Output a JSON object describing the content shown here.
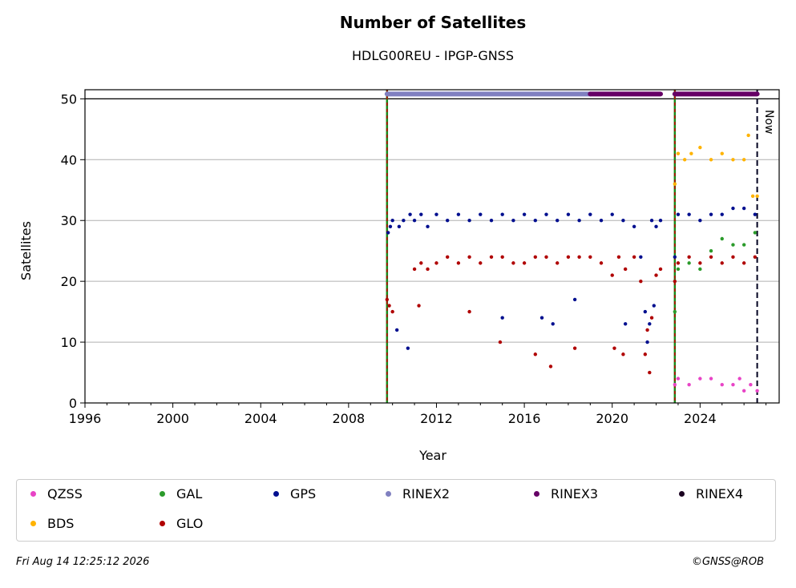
{
  "header": {
    "title": "Number of Satellites",
    "subtitle": "HDLG00REU - IPGP-GNSS"
  },
  "footer": {
    "timestamp": "Fri Aug 14 12:25:12 2026",
    "credit": "©GNSS@ROB"
  },
  "now_marker": {
    "label": "Now"
  },
  "legend": {
    "items": [
      {
        "label": "QZSS",
        "color": "#e844c6"
      },
      {
        "label": "GAL",
        "color": "#2b9b2b"
      },
      {
        "label": "GPS",
        "color": "#000f8f"
      },
      {
        "label": "RINEX2",
        "color": "#8080c0"
      },
      {
        "label": "RINEX3",
        "color": "#660066"
      },
      {
        "label": "RINEX4",
        "color": "#1a0020"
      },
      {
        "label": "BDS",
        "color": "#ffb300"
      },
      {
        "label": "GLO",
        "color": "#b00000"
      }
    ]
  },
  "chart_data": {
    "type": "scatter",
    "title": "Number of Satellites",
    "subtitle": "HDLG00REU - IPGP-GNSS",
    "xlabel": "Year",
    "ylabel": "Satellites",
    "xlim": [
      1996,
      2027.6
    ],
    "ylim": [
      0,
      51.5
    ],
    "x_ticks": [
      "1996",
      "2000",
      "2004",
      "2008",
      "2012",
      "2016",
      "2020",
      "2024"
    ],
    "y_ticks": [
      "0",
      "10",
      "20",
      "30",
      "40",
      "50"
    ],
    "grid": "horizontal",
    "legend_position": "bottom",
    "vertical_markers": [
      {
        "x": 2009.75,
        "style": "green-red dashed"
      },
      {
        "x": 2022.85,
        "style": "green-red dashed"
      },
      {
        "x": 2026.6,
        "style": "black dashed",
        "label": "Now"
      }
    ],
    "rinex_bars": [
      {
        "name": "RINEX2",
        "start": 2009.75,
        "end": 2019.0,
        "y": 50.8
      },
      {
        "name": "RINEX3",
        "start": 2019.0,
        "end": 2022.2,
        "y": 50.8
      },
      {
        "name": "RINEX3",
        "start": 2022.85,
        "end": 2026.6,
        "y": 50.8
      }
    ],
    "series": [
      {
        "name": "GPS",
        "points": [
          [
            2009.8,
            28
          ],
          [
            2009.9,
            29
          ],
          [
            2010.0,
            30
          ],
          [
            2010.3,
            29
          ],
          [
            2010.5,
            30
          ],
          [
            2010.8,
            31
          ],
          [
            2011.0,
            30
          ],
          [
            2011.3,
            31
          ],
          [
            2011.6,
            29
          ],
          [
            2012.0,
            31
          ],
          [
            2012.5,
            30
          ],
          [
            2013.0,
            31
          ],
          [
            2013.5,
            30
          ],
          [
            2014.0,
            31
          ],
          [
            2014.5,
            30
          ],
          [
            2015.0,
            31
          ],
          [
            2015.5,
            30
          ],
          [
            2016.0,
            31
          ],
          [
            2016.5,
            30
          ],
          [
            2017.0,
            31
          ],
          [
            2017.5,
            30
          ],
          [
            2018.0,
            31
          ],
          [
            2018.5,
            30
          ],
          [
            2019.0,
            31
          ],
          [
            2019.5,
            30
          ],
          [
            2020.0,
            31
          ],
          [
            2020.5,
            30
          ],
          [
            2021.0,
            29
          ],
          [
            2021.3,
            24
          ],
          [
            2021.5,
            15
          ],
          [
            2021.6,
            10
          ],
          [
            2021.7,
            13
          ],
          [
            2021.8,
            30
          ],
          [
            2022.0,
            29
          ],
          [
            2022.2,
            30
          ],
          [
            2010.2,
            12
          ],
          [
            2010.7,
            9
          ],
          [
            2015.0,
            14
          ],
          [
            2016.8,
            14
          ],
          [
            2017.3,
            13
          ],
          [
            2018.3,
            17
          ],
          [
            2020.6,
            13
          ],
          [
            2021.9,
            16
          ],
          [
            2022.85,
            24
          ],
          [
            2023.0,
            31
          ],
          [
            2023.5,
            31
          ],
          [
            2024.0,
            30
          ],
          [
            2024.5,
            31
          ],
          [
            2025.0,
            31
          ],
          [
            2025.5,
            32
          ],
          [
            2026.0,
            32
          ],
          [
            2026.5,
            31
          ]
        ]
      },
      {
        "name": "GLO",
        "points": [
          [
            2009.75,
            17
          ],
          [
            2009.85,
            16
          ],
          [
            2010.0,
            15
          ],
          [
            2011.0,
            22
          ],
          [
            2011.3,
            23
          ],
          [
            2011.6,
            22
          ],
          [
            2012.0,
            23
          ],
          [
            2012.5,
            24
          ],
          [
            2013.0,
            23
          ],
          [
            2013.5,
            24
          ],
          [
            2014.0,
            23
          ],
          [
            2014.5,
            24
          ],
          [
            2015.0,
            24
          ],
          [
            2015.5,
            23
          ],
          [
            2016.0,
            23
          ],
          [
            2016.5,
            24
          ],
          [
            2017.0,
            24
          ],
          [
            2017.5,
            23
          ],
          [
            2018.0,
            24
          ],
          [
            2018.5,
            24
          ],
          [
            2019.0,
            24
          ],
          [
            2019.5,
            23
          ],
          [
            2020.0,
            21
          ],
          [
            2020.3,
            24
          ],
          [
            2020.6,
            22
          ],
          [
            2021.0,
            24
          ],
          [
            2021.3,
            20
          ],
          [
            2021.5,
            8
          ],
          [
            2021.6,
            12
          ],
          [
            2021.7,
            5
          ],
          [
            2021.8,
            14
          ],
          [
            2022.0,
            21
          ],
          [
            2022.2,
            22
          ],
          [
            2011.2,
            16
          ],
          [
            2013.5,
            15
          ],
          [
            2014.9,
            10
          ],
          [
            2016.5,
            8
          ],
          [
            2017.2,
            6
          ],
          [
            2018.3,
            9
          ],
          [
            2020.1,
            9
          ],
          [
            2020.5,
            8
          ],
          [
            2022.85,
            20
          ],
          [
            2023.0,
            23
          ],
          [
            2023.5,
            24
          ],
          [
            2024.0,
            23
          ],
          [
            2024.5,
            24
          ],
          [
            2025.0,
            23
          ],
          [
            2025.5,
            24
          ],
          [
            2026.0,
            23
          ],
          [
            2026.5,
            24
          ]
        ]
      },
      {
        "name": "GAL",
        "points": [
          [
            2022.85,
            15
          ],
          [
            2023.0,
            22
          ],
          [
            2023.5,
            23
          ],
          [
            2024.0,
            22
          ],
          [
            2024.5,
            25
          ],
          [
            2025.0,
            27
          ],
          [
            2025.5,
            26
          ],
          [
            2026.0,
            26
          ],
          [
            2026.5,
            28
          ]
        ]
      },
      {
        "name": "BDS",
        "points": [
          [
            2022.85,
            36
          ],
          [
            2023.0,
            41
          ],
          [
            2023.3,
            40
          ],
          [
            2023.6,
            41
          ],
          [
            2024.0,
            42
          ],
          [
            2024.5,
            40
          ],
          [
            2025.0,
            41
          ],
          [
            2025.5,
            40
          ],
          [
            2026.0,
            40
          ],
          [
            2026.2,
            44
          ],
          [
            2026.4,
            34
          ],
          [
            2026.6,
            34
          ]
        ]
      },
      {
        "name": "QZSS",
        "points": [
          [
            2022.85,
            3
          ],
          [
            2023.0,
            4
          ],
          [
            2023.5,
            3
          ],
          [
            2024.0,
            4
          ],
          [
            2024.5,
            4
          ],
          [
            2025.0,
            3
          ],
          [
            2025.5,
            3
          ],
          [
            2025.8,
            4
          ],
          [
            2026.0,
            2
          ],
          [
            2026.3,
            3
          ],
          [
            2026.6,
            2
          ]
        ]
      }
    ]
  }
}
